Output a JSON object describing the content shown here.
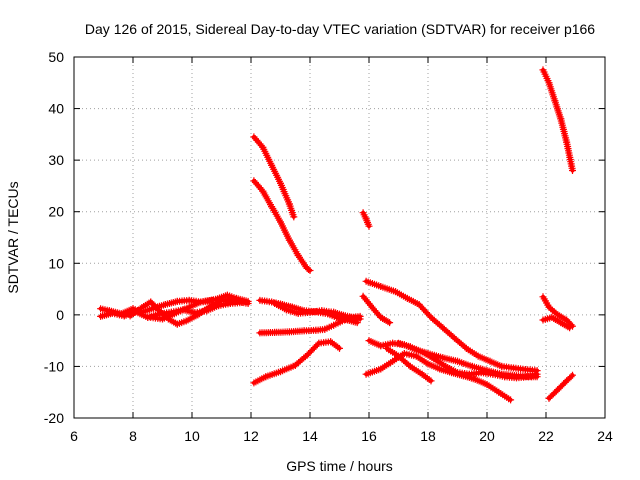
{
  "chart_data": {
    "type": "scatter",
    "title": "Day 126 of 2015, Sidereal Day-to-day VTEC variation (SDTVAR) for receiver p166",
    "xlabel": "GPS time / hours",
    "ylabel": "SDTVAR / TECUs",
    "xlim": [
      6,
      24
    ],
    "ylim": [
      -20,
      50
    ],
    "xticks": [
      6,
      8,
      10,
      12,
      14,
      16,
      18,
      20,
      22,
      24
    ],
    "yticks": [
      -20,
      -10,
      0,
      10,
      20,
      30,
      40,
      50
    ],
    "grid": true,
    "marker": "plus",
    "color": "#ff0000",
    "series": [
      {
        "name": "s1",
        "points": [
          [
            6.9,
            1.2
          ],
          [
            7.2,
            0.8
          ],
          [
            7.6,
            0.2
          ],
          [
            8.0,
            1.2
          ],
          [
            8.3,
            0.5
          ],
          [
            8.7,
            1.3
          ],
          [
            9.1,
            2.0
          ],
          [
            9.5,
            2.6
          ],
          [
            9.9,
            2.8
          ],
          [
            10.3,
            2.5
          ],
          [
            10.8,
            3.0
          ],
          [
            11.2,
            3.8
          ],
          [
            11.5,
            3.2
          ],
          [
            11.9,
            2.6
          ]
        ]
      },
      {
        "name": "s2",
        "points": [
          [
            6.9,
            -0.3
          ],
          [
            7.3,
            0.3
          ],
          [
            7.7,
            -0.2
          ],
          [
            8.1,
            0.6
          ],
          [
            8.5,
            -0.5
          ],
          [
            8.9,
            0.2
          ],
          [
            9.3,
            0.5
          ],
          [
            9.7,
            1.0
          ],
          [
            10.1,
            0.4
          ],
          [
            10.5,
            0.8
          ],
          [
            10.9,
            1.8
          ],
          [
            11.3,
            2.2
          ],
          [
            11.7,
            2.4
          ]
        ]
      },
      {
        "name": "s3",
        "points": [
          [
            7.9,
            -0.2
          ],
          [
            8.3,
            1.4
          ],
          [
            8.6,
            2.5
          ],
          [
            8.9,
            0.8
          ],
          [
            9.2,
            -0.8
          ],
          [
            9.5,
            -1.8
          ],
          [
            9.8,
            -1.2
          ],
          [
            10.2,
            0.0
          ],
          [
            10.6,
            1.6
          ],
          [
            11.0,
            2.8
          ],
          [
            11.4,
            2.8
          ],
          [
            11.9,
            2.2
          ]
        ]
      },
      {
        "name": "s4",
        "points": [
          [
            8.6,
            -0.5
          ],
          [
            9.0,
            -0.8
          ],
          [
            9.4,
            0.2
          ],
          [
            9.9,
            1.5
          ],
          [
            10.3,
            2.5
          ],
          [
            10.7,
            2.8
          ]
        ]
      },
      {
        "name": "s5",
        "points": [
          [
            12.1,
            34.5
          ],
          [
            12.4,
            32.5
          ],
          [
            12.7,
            29.0
          ],
          [
            13.0,
            25.5
          ],
          [
            13.3,
            21.5
          ],
          [
            13.45,
            19.0
          ]
        ]
      },
      {
        "name": "s6",
        "points": [
          [
            12.1,
            26.0
          ],
          [
            12.4,
            24.0
          ],
          [
            12.7,
            21.0
          ],
          [
            13.0,
            18.0
          ],
          [
            13.3,
            14.5
          ],
          [
            13.6,
            11.5
          ],
          [
            13.9,
            9.0
          ],
          [
            14.0,
            8.6
          ]
        ]
      },
      {
        "name": "s7",
        "points": [
          [
            12.3,
            2.8
          ],
          [
            12.7,
            2.5
          ],
          [
            13.0,
            2.1
          ],
          [
            13.4,
            1.5
          ],
          [
            13.8,
            0.8
          ],
          [
            14.2,
            0.6
          ],
          [
            14.6,
            0.2
          ],
          [
            14.9,
            -0.5
          ],
          [
            15.2,
            -0.9
          ],
          [
            15.6,
            -1.5
          ]
        ]
      },
      {
        "name": "s8",
        "points": [
          [
            12.8,
            2.2
          ],
          [
            13.2,
            1.0
          ],
          [
            13.6,
            0.3
          ],
          [
            14.0,
            0.5
          ],
          [
            14.4,
            0.8
          ],
          [
            14.8,
            0.5
          ],
          [
            15.2,
            -0.2
          ],
          [
            15.7,
            -0.8
          ]
        ]
      },
      {
        "name": "s9",
        "points": [
          [
            12.3,
            -3.5
          ],
          [
            12.8,
            -3.4
          ],
          [
            13.3,
            -3.3
          ],
          [
            13.8,
            -3.1
          ],
          [
            14.2,
            -3.0
          ],
          [
            14.5,
            -2.8
          ],
          [
            14.8,
            -2.0
          ],
          [
            15.1,
            -1.2
          ],
          [
            15.4,
            -0.5
          ],
          [
            15.7,
            -0.3
          ]
        ]
      },
      {
        "name": "s10",
        "points": [
          [
            12.1,
            -13.2
          ],
          [
            12.5,
            -12.0
          ],
          [
            13.0,
            -11.0
          ],
          [
            13.5,
            -9.8
          ],
          [
            13.9,
            -7.8
          ],
          [
            14.3,
            -5.5
          ],
          [
            14.7,
            -5.2
          ],
          [
            15.0,
            -6.5
          ]
        ]
      },
      {
        "name": "s11",
        "points": [
          [
            15.8,
            19.8
          ],
          [
            15.9,
            18.6
          ],
          [
            16.0,
            17.2
          ]
        ]
      },
      {
        "name": "s12",
        "points": [
          [
            15.9,
            6.5
          ],
          [
            16.4,
            5.5
          ],
          [
            16.9,
            4.5
          ],
          [
            17.3,
            3.2
          ],
          [
            17.7,
            2.0
          ],
          [
            18.1,
            -0.5
          ],
          [
            18.5,
            -2.5
          ],
          [
            18.9,
            -4.5
          ],
          [
            19.3,
            -6.5
          ],
          [
            19.7,
            -8.0
          ],
          [
            20.1,
            -9.0
          ],
          [
            20.5,
            -10.0
          ],
          [
            20.9,
            -10.3
          ],
          [
            21.3,
            -10.6
          ],
          [
            21.7,
            -10.8
          ]
        ]
      },
      {
        "name": "s13",
        "points": [
          [
            15.8,
            3.6
          ],
          [
            16.1,
            1.5
          ],
          [
            16.4,
            -0.5
          ],
          [
            16.7,
            -1.5
          ]
        ]
      },
      {
        "name": "s14",
        "points": [
          [
            16.0,
            -5.0
          ],
          [
            16.4,
            -6.0
          ],
          [
            16.8,
            -5.5
          ],
          [
            17.2,
            -5.8
          ],
          [
            17.6,
            -6.8
          ],
          [
            18.0,
            -7.5
          ],
          [
            18.5,
            -8.3
          ],
          [
            19.0,
            -9.0
          ],
          [
            19.5,
            -10.0
          ],
          [
            20.0,
            -10.8
          ],
          [
            20.5,
            -11.5
          ],
          [
            21.0,
            -11.8
          ],
          [
            21.5,
            -12.0
          ],
          [
            21.7,
            -12.0
          ]
        ]
      },
      {
        "name": "s15",
        "points": [
          [
            17.0,
            -5.5
          ],
          [
            17.4,
            -6.2
          ],
          [
            17.8,
            -7.2
          ],
          [
            18.2,
            -8.5
          ],
          [
            18.6,
            -10.0
          ],
          [
            19.0,
            -11.2
          ],
          [
            19.4,
            -11.5
          ],
          [
            19.8,
            -11.2
          ],
          [
            20.2,
            -11.5
          ],
          [
            20.6,
            -12.0
          ],
          [
            21.0,
            -12.2
          ],
          [
            21.4,
            -12.0
          ],
          [
            21.7,
            -11.5
          ]
        ]
      },
      {
        "name": "s16",
        "points": [
          [
            15.9,
            -11.5
          ],
          [
            16.4,
            -10.5
          ],
          [
            16.8,
            -9.0
          ],
          [
            17.2,
            -7.5
          ],
          [
            17.6,
            -8.0
          ],
          [
            18.0,
            -9.5
          ],
          [
            18.4,
            -10.5
          ],
          [
            18.8,
            -11.2
          ],
          [
            19.2,
            -11.8
          ],
          [
            19.6,
            -12.5
          ],
          [
            20.0,
            -13.5
          ],
          [
            20.4,
            -15.0
          ],
          [
            20.8,
            -16.5
          ]
        ]
      },
      {
        "name": "s17",
        "points": [
          [
            16.6,
            -6.5
          ],
          [
            17.0,
            -8.0
          ],
          [
            17.4,
            -10.0
          ],
          [
            17.8,
            -11.5
          ],
          [
            18.1,
            -12.8
          ]
        ]
      },
      {
        "name": "s18",
        "points": [
          [
            21.9,
            47.5
          ],
          [
            22.1,
            45.0
          ],
          [
            22.3,
            41.5
          ],
          [
            22.5,
            38.0
          ],
          [
            22.7,
            33.5
          ],
          [
            22.9,
            28.0
          ]
        ]
      },
      {
        "name": "s19",
        "points": [
          [
            21.9,
            3.5
          ],
          [
            22.1,
            1.5
          ],
          [
            22.4,
            0.0
          ],
          [
            22.7,
            -1.0
          ],
          [
            22.9,
            -2.2
          ]
        ]
      },
      {
        "name": "s20",
        "points": [
          [
            21.9,
            -1.0
          ],
          [
            22.2,
            -0.5
          ],
          [
            22.5,
            -1.5
          ],
          [
            22.8,
            -2.5
          ]
        ]
      },
      {
        "name": "s21",
        "points": [
          [
            22.1,
            -16.2
          ],
          [
            22.4,
            -14.5
          ],
          [
            22.7,
            -12.8
          ],
          [
            22.9,
            -11.7
          ]
        ]
      }
    ]
  }
}
